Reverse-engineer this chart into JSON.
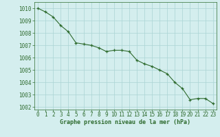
{
  "x": [
    0,
    1,
    2,
    3,
    4,
    5,
    6,
    7,
    8,
    9,
    10,
    11,
    12,
    13,
    14,
    15,
    16,
    17,
    18,
    19,
    20,
    21,
    22,
    23
  ],
  "y": [
    1010.0,
    1009.7,
    1009.3,
    1008.6,
    1008.1,
    1007.2,
    1007.1,
    1007.0,
    1006.8,
    1006.5,
    1006.6,
    1006.6,
    1006.5,
    1005.8,
    1005.5,
    1005.3,
    1005.0,
    1004.7,
    1004.0,
    1003.5,
    1002.6,
    1002.7,
    1002.7,
    1002.3
  ],
  "ylim": [
    1001.8,
    1010.5
  ],
  "xlim": [
    -0.5,
    23.5
  ],
  "yticks": [
    1002,
    1003,
    1004,
    1005,
    1006,
    1007,
    1008,
    1009,
    1010
  ],
  "xticks": [
    0,
    1,
    2,
    3,
    4,
    5,
    6,
    7,
    8,
    9,
    10,
    11,
    12,
    13,
    14,
    15,
    16,
    17,
    18,
    19,
    20,
    21,
    22,
    23
  ],
  "line_color": "#2d6a2d",
  "marker_color": "#2d6a2d",
  "bg_color": "#d4eeee",
  "grid_color": "#aad4d4",
  "xlabel": "Graphe pression niveau de la mer (hPa)",
  "xlabel_color": "#2d6a2d",
  "tick_color": "#2d6a2d",
  "axis_color": "#2d6a2d",
  "tick_fontsize": 5.5,
  "xlabel_fontsize": 6.0
}
